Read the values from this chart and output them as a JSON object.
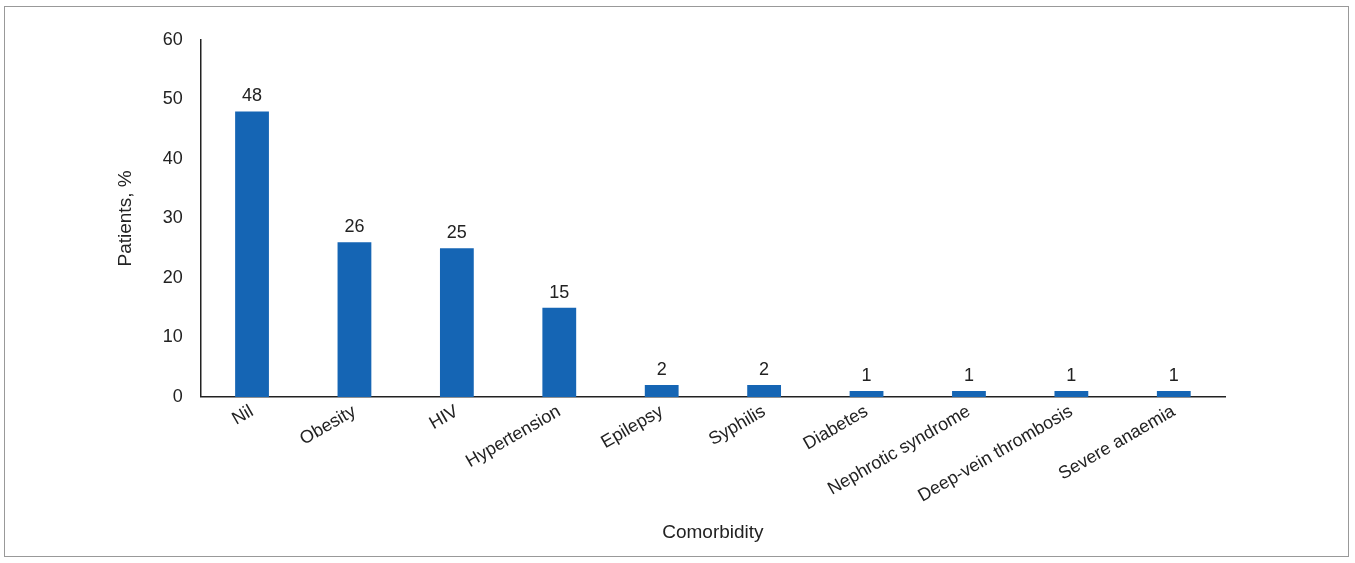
{
  "chart_data": {
    "type": "bar",
    "xlabel": "Comorbidity",
    "ylabel": "Patients, %",
    "categories": [
      "Nil",
      "Obesity",
      "HIV",
      "Hypertension",
      "Epilepsy",
      "Syphilis",
      "Diabetes",
      "Nephrotic syndrome",
      "Deep-vein thrombosis",
      "Severe anaemia"
    ],
    "values": [
      48,
      26,
      25,
      15,
      2,
      2,
      1,
      1,
      1,
      1
    ],
    "color": "#1565b4",
    "ylim": [
      0,
      60
    ],
    "yticks": [
      0,
      10,
      20,
      30,
      40,
      50,
      60
    ],
    "data_labels": true
  }
}
